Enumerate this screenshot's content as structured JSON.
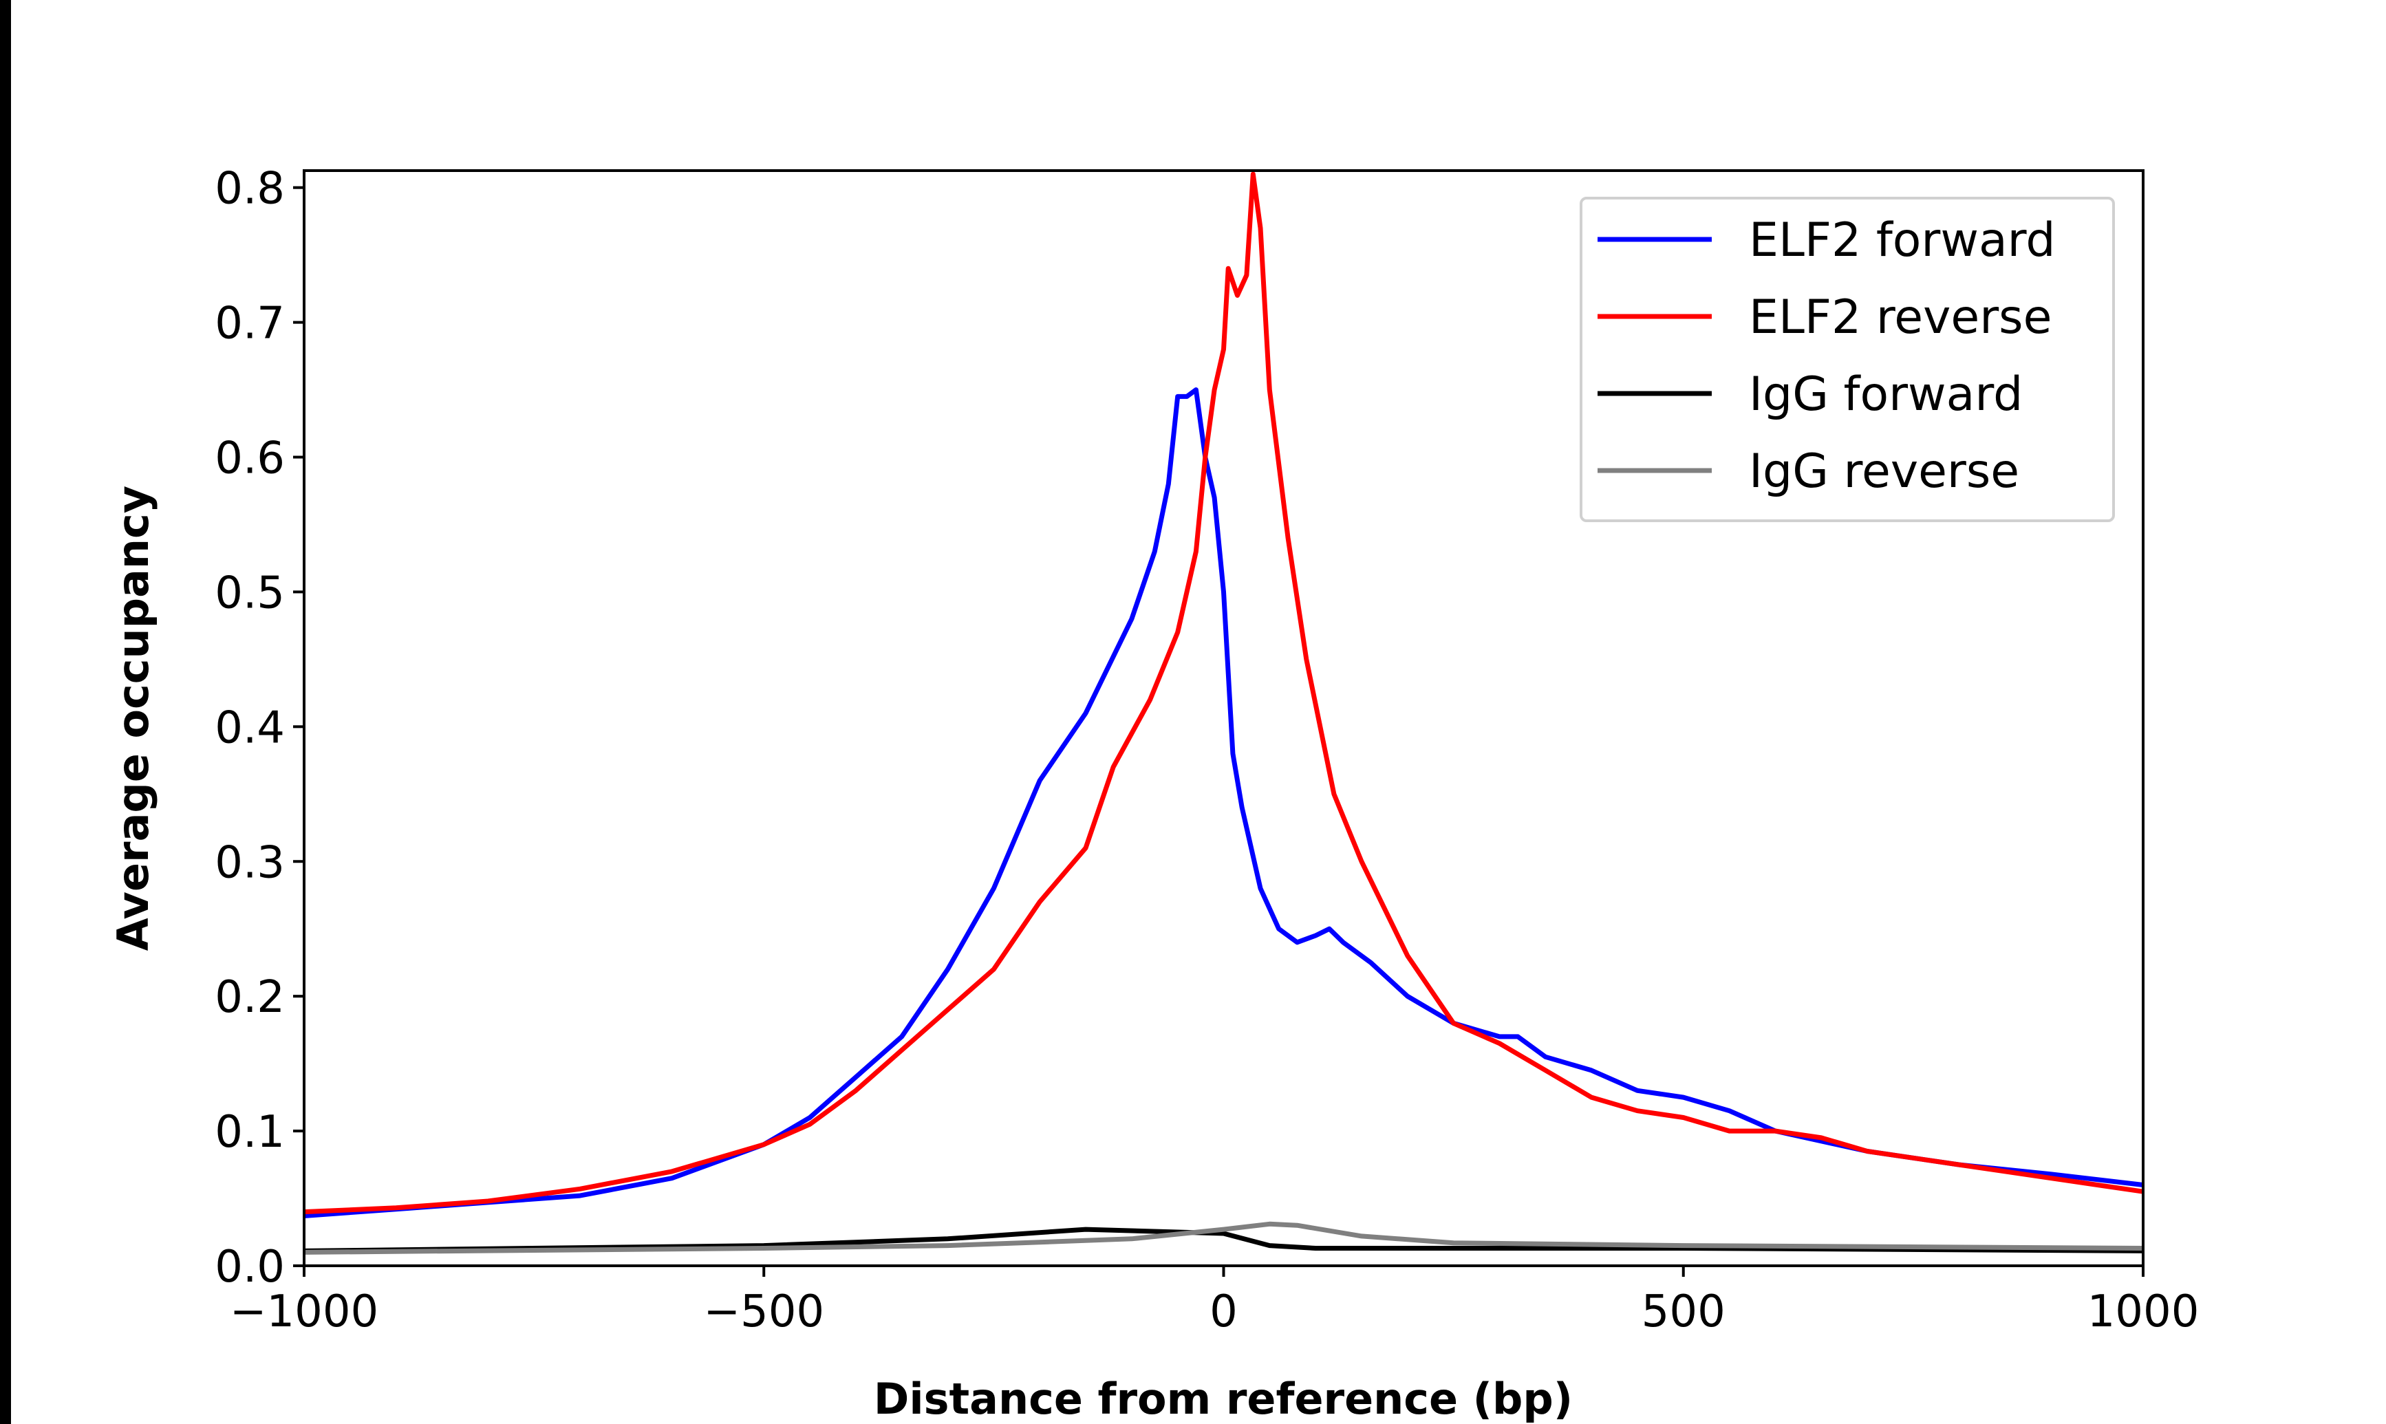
{
  "chart_data": {
    "type": "line",
    "xlabel": "Distance from reference (bp)",
    "ylabel": "Average occupancy",
    "xlim": [
      -1000,
      1000
    ],
    "ylim": [
      0,
      0.8126
    ],
    "xticks": [
      -1000,
      -500,
      0,
      500,
      1000
    ],
    "xtick_labels": [
      "−1000",
      "−500",
      "0",
      "500",
      "1000"
    ],
    "yticks": [
      0.0,
      0.1,
      0.2,
      0.3,
      0.4,
      0.5,
      0.6,
      0.7,
      0.8
    ],
    "ytick_labels": [
      "0.0",
      "0.1",
      "0.2",
      "0.3",
      "0.4",
      "0.5",
      "0.6",
      "0.7",
      "0.8"
    ],
    "grid": false,
    "legend_position": "top-right",
    "series": [
      {
        "name": "ELF2 forward",
        "color": "#0000ff",
        "x": [
          -1000,
          -900,
          -800,
          -700,
          -600,
          -500,
          -450,
          -400,
          -350,
          -300,
          -250,
          -200,
          -150,
          -100,
          -75,
          -60,
          -50,
          -40,
          -30,
          -20,
          -10,
          0,
          10,
          20,
          40,
          60,
          80,
          100,
          115,
          130,
          160,
          200,
          250,
          300,
          320,
          350,
          400,
          450,
          500,
          550,
          600,
          700,
          800,
          900,
          1000
        ],
        "y": [
          0.037,
          0.042,
          0.047,
          0.052,
          0.065,
          0.09,
          0.11,
          0.14,
          0.17,
          0.22,
          0.28,
          0.36,
          0.41,
          0.48,
          0.53,
          0.58,
          0.645,
          0.645,
          0.65,
          0.6,
          0.57,
          0.5,
          0.38,
          0.34,
          0.28,
          0.25,
          0.24,
          0.245,
          0.25,
          0.24,
          0.225,
          0.2,
          0.18,
          0.17,
          0.17,
          0.155,
          0.145,
          0.13,
          0.125,
          0.115,
          0.1,
          0.085,
          0.075,
          0.068,
          0.06
        ]
      },
      {
        "name": "ELF2 reverse",
        "color": "#ff0000",
        "x": [
          -1000,
          -900,
          -800,
          -700,
          -600,
          -500,
          -450,
          -400,
          -350,
          -300,
          -250,
          -200,
          -150,
          -120,
          -80,
          -50,
          -30,
          -20,
          -10,
          0,
          5,
          15,
          25,
          32,
          40,
          50,
          70,
          90,
          120,
          150,
          200,
          250,
          300,
          350,
          400,
          450,
          500,
          550,
          600,
          650,
          700,
          800,
          900,
          1000
        ],
        "y": [
          0.04,
          0.043,
          0.048,
          0.057,
          0.07,
          0.09,
          0.105,
          0.13,
          0.16,
          0.19,
          0.22,
          0.27,
          0.31,
          0.37,
          0.42,
          0.47,
          0.53,
          0.6,
          0.65,
          0.68,
          0.74,
          0.72,
          0.735,
          0.81,
          0.77,
          0.65,
          0.54,
          0.45,
          0.35,
          0.3,
          0.23,
          0.18,
          0.165,
          0.145,
          0.125,
          0.115,
          0.11,
          0.1,
          0.1,
          0.095,
          0.085,
          0.075,
          0.065,
          0.055
        ]
      },
      {
        "name": "IgG forward",
        "color": "#000000",
        "x": [
          -1000,
          -500,
          -300,
          -150,
          -50,
          0,
          50,
          100,
          200,
          500,
          1000
        ],
        "y": [
          0.011,
          0.015,
          0.02,
          0.027,
          0.025,
          0.024,
          0.015,
          0.013,
          0.013,
          0.013,
          0.011
        ]
      },
      {
        "name": "IgG reverse",
        "color": "#808080",
        "x": [
          -1000,
          -500,
          -300,
          -100,
          0,
          50,
          80,
          150,
          250,
          500,
          1000
        ],
        "y": [
          0.01,
          0.013,
          0.015,
          0.02,
          0.027,
          0.031,
          0.03,
          0.022,
          0.017,
          0.015,
          0.013
        ]
      }
    ]
  }
}
